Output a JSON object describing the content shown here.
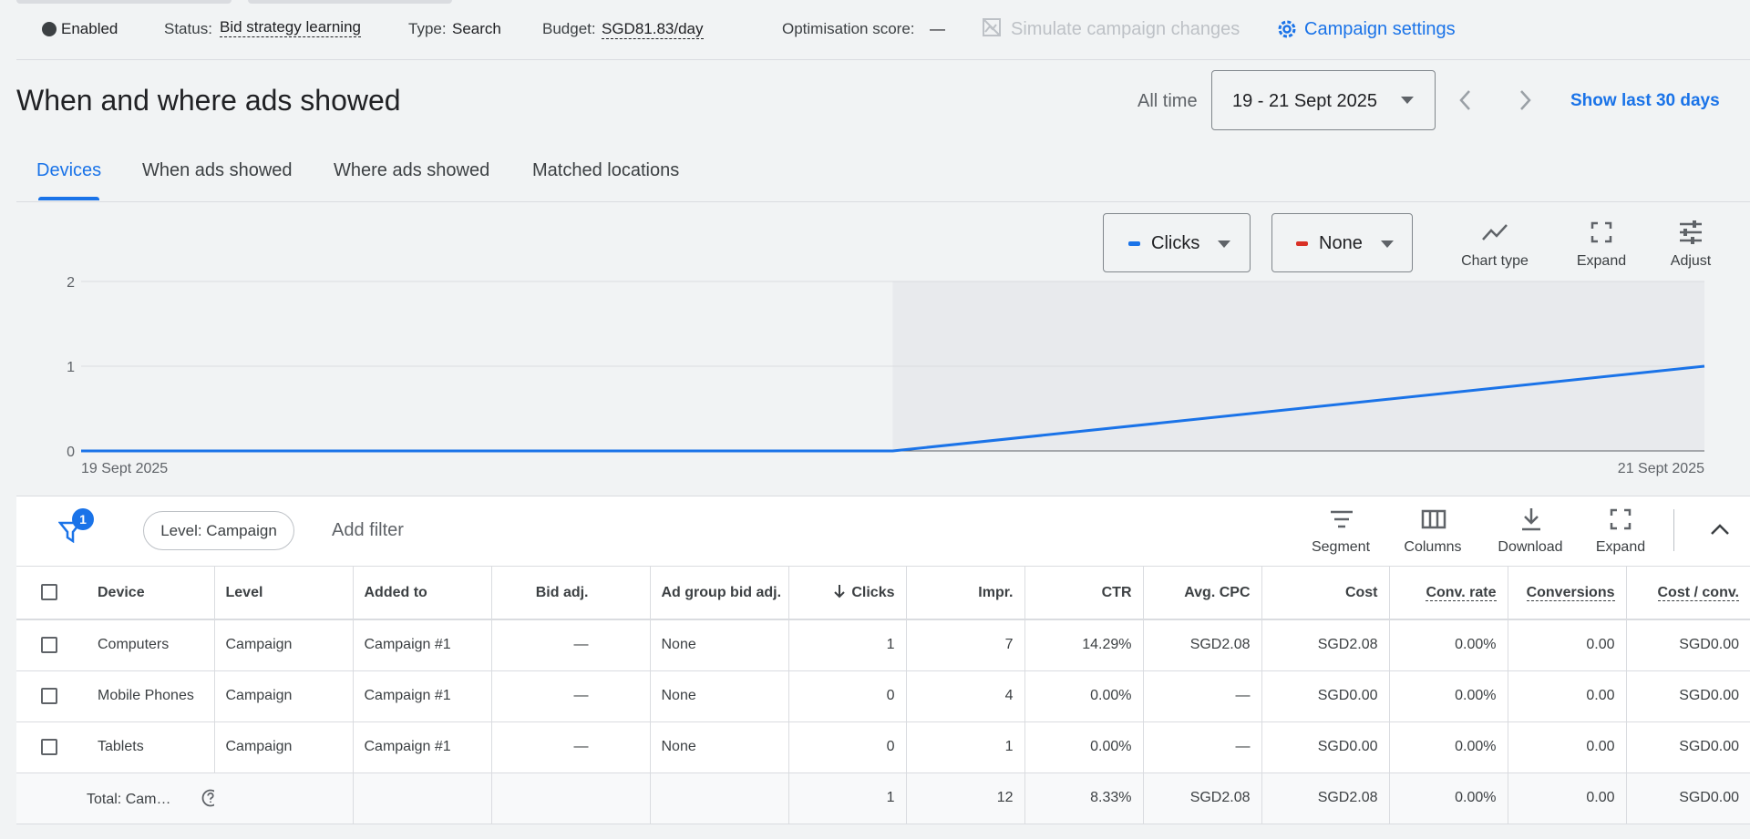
{
  "status_bar": {
    "enabled": "Enabled",
    "status_label": "Status:",
    "status": "Bid strategy learning",
    "type_label": "Type:",
    "type": "Search",
    "budget_label": "Budget:",
    "budget": "SGD81.83/day",
    "optimisation_label": "Optimisation score:",
    "optimisation": "—",
    "simulate": "Simulate campaign changes",
    "settings": "Campaign settings"
  },
  "header": {
    "title": "When and where ads showed",
    "range_label": "All time",
    "date_range": "19 - 21 Sept 2025",
    "show_last": "Show last 30 days"
  },
  "tabs": [
    "Devices",
    "When ads showed",
    "Where ads showed",
    "Matched locations"
  ],
  "chart_controls": {
    "metric2": "None",
    "chart_type": "Chart type",
    "expand": "Expand",
    "adjust": "Adjust"
  },
  "chart_data": {
    "type": "line",
    "categories": [
      "19 Sept 2025",
      null,
      "21 Sept 2025"
    ],
    "series": [
      {
        "name": "Clicks",
        "color": "#1a73e8",
        "values": [
          0,
          0,
          1
        ]
      }
    ],
    "ylim": [
      0,
      2
    ],
    "yticks": [
      0,
      1,
      2
    ],
    "grid": true
  },
  "table_toolbar": {
    "filter_badge": "1",
    "level": "Level: Campaign",
    "add_filter": "Add filter",
    "segment": "Segment",
    "columns": "Columns",
    "download": "Download",
    "expand": "Expand"
  },
  "table": {
    "headers": [
      "Device",
      "Level",
      "Added to",
      "Bid adj.",
      "Ad group bid adj.",
      "Clicks",
      "Impr.",
      "CTR",
      "Avg. CPC",
      "Cost",
      "Conv. rate",
      "Conversions",
      "Cost / conv."
    ],
    "rows": [
      [
        "Computers",
        "Campaign",
        "Campaign #1",
        "—",
        "None",
        "1",
        "7",
        "14.29%",
        "SGD2.08",
        "SGD2.08",
        "0.00%",
        "0.00",
        "SGD0.00"
      ],
      [
        "Mobile Phones",
        "Campaign",
        "Campaign #1",
        "—",
        "None",
        "0",
        "4",
        "0.00%",
        "—",
        "SGD0.00",
        "0.00%",
        "0.00",
        "SGD0.00"
      ],
      [
        "Tablets",
        "Campaign",
        "Campaign #1",
        "—",
        "None",
        "0",
        "1",
        "0.00%",
        "—",
        "SGD0.00",
        "0.00%",
        "0.00",
        "SGD0.00"
      ]
    ],
    "total": {
      "label": "Total: Cam…",
      "values": [
        "1",
        "12",
        "8.33%",
        "SGD2.08",
        "SGD2.08",
        "0.00%",
        "0.00",
        "SGD0.00"
      ]
    }
  }
}
